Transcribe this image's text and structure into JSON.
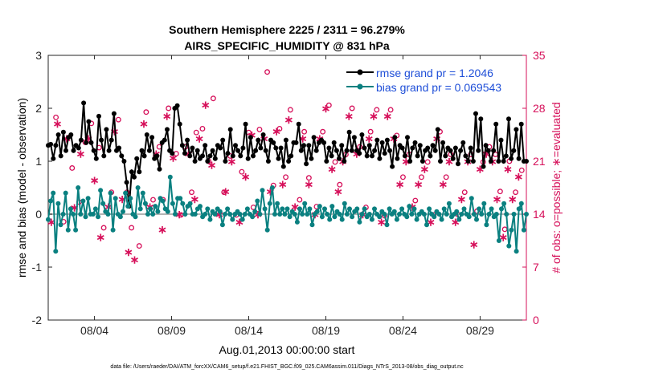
{
  "chart_data": {
    "type": "line",
    "title": "Southern Hemisphere 2225 / 2311 = 96.279%",
    "subtitle": "AIRS_SPECIFIC_HUMIDITY @ 831 hPa",
    "xlabel": "Aug.01,2013 00:00:00 start",
    "ylabel": "rmse and bias (model - observation)",
    "ylabel_right": "# of obs: o=possible; ∗=evaluated",
    "footnote": "data file: /Users/raeder/DAI/ATM_forcXX/CAM6_setup/f.e21.FHIST_BGC.f09_025.CAM6assim.011/Diags_NTrS_2013-08/obs_diag_output.nc",
    "xlim": [
      1,
      32
    ],
    "ylim": [
      -2,
      3
    ],
    "ylim_right": [
      0,
      35
    ],
    "x_ticks": [
      4,
      9,
      14,
      19,
      24,
      29
    ],
    "x_tick_labels": [
      "08/04",
      "08/09",
      "08/14",
      "08/19",
      "08/24",
      "08/29"
    ],
    "y_ticks": [
      -2,
      -1,
      0,
      1,
      2,
      3
    ],
    "y_tick_labels": [
      "-2",
      "-1",
      "0",
      "1",
      "2",
      "3"
    ],
    "y_ticks_right": [
      0,
      7,
      14,
      21,
      28,
      35
    ],
    "y_tick_labels_right": [
      "0",
      "7",
      "14",
      "21",
      "28",
      "35"
    ],
    "legend_position": "top-right",
    "colors": {
      "rmse": "#000000",
      "bias": "#0a8080",
      "obs": "#d6105a",
      "zero_line": "#b4b4b4",
      "legend_text": "#1f4fd8"
    },
    "series": [
      {
        "name": "rmse grand pr = 1.2046",
        "key": "rmse",
        "values": [
          1.3,
          1.32,
          1.05,
          1.3,
          1.5,
          1.1,
          1.55,
          1.2,
          1.45,
          1.5,
          1.2,
          1.3,
          1.25,
          1.4,
          2.1,
          1.35,
          1.75,
          1.35,
          1.2,
          1.05,
          1.85,
          1.4,
          1.1,
          1.6,
          1.2,
          1.4,
          1.9,
          1.2,
          1.25,
          1.1,
          1.0,
          0.6,
          0.15,
          0.8,
          0.7,
          1.05,
          0.8,
          1.2,
          1.1,
          1.5,
          1.2,
          1.45,
          1.05,
          1.1,
          0.85,
          1.35,
          1.4,
          1.6,
          1.2,
          1.15,
          2.0,
          2.05,
          1.7,
          1.3,
          1.15,
          1.4,
          1.1,
          1.25,
          1.0,
          1.2,
          1.05,
          1.1,
          1.3,
          1.0,
          1.1,
          1.2,
          1.05,
          1.3,
          1.25,
          1.4,
          1.0,
          1.15,
          1.6,
          1.1,
          1.3,
          1.2,
          1.1,
          1.25,
          1.7,
          1.05,
          1.45,
          1.1,
          1.2,
          1.4,
          1.25,
          1.5,
          1.2,
          1.0,
          1.4,
          1.35,
          1.25,
          1.05,
          1.25,
          0.9,
          1.4,
          1.0,
          1.1,
          1.35,
          1.35,
          1.7,
          1.2,
          1.3,
          0.95,
          1.3,
          1.05,
          1.45,
          1.2,
          1.35,
          1.4,
          1.35,
          1.0,
          1.25,
          1.1,
          1.35,
          1.2,
          1.05,
          1.3,
          1.0,
          1.2,
          1.55,
          1.2,
          1.45,
          1.2,
          1.15,
          1.5,
          1.25,
          1.1,
          1.3,
          1.1,
          1.2,
          1.4,
          1.05,
          1.35,
          1.15,
          1.4,
          1.2,
          0.9,
          1.45,
          1.05,
          1.3,
          1.25,
          1.1,
          1.45,
          1.0,
          1.25,
          1.35,
          1.1,
          1.3,
          1.0,
          1.2,
          1.25,
          1.1,
          1.3,
          1.2,
          1.6,
          1.0,
          1.35,
          1.1,
          1.25,
          1.2,
          1.05,
          1.25,
          0.95,
          1.2,
          1.35,
          1.1,
          1.0,
          1.25,
          1.0,
          1.9,
          1.2,
          1.8,
          0.9,
          1.3,
          1.2,
          1.0,
          1.2,
          1.7,
          1.0,
          1.4,
          1.0,
          1.1,
          1.8,
          1.05,
          1.2,
          1.6,
          1.05,
          1.7,
          1.0,
          1.0
        ]
      },
      {
        "name": "bias grand pr = 0.069543",
        "key": "bias",
        "values": [
          -0.1,
          0.25,
          0.4,
          -0.7,
          0.2,
          -0.2,
          0.0,
          0.4,
          -0.3,
          0.1,
          0.0,
          -0.3,
          0.5,
          0.0,
          0.25,
          -0.05,
          0.3,
          0.0,
          0.0,
          0.1,
          -0.05,
          0.45,
          0.2,
          0.05,
          0.0,
          0.4,
          -0.3,
          0.3,
          0.0,
          -0.05,
          0.05,
          0.4,
          0.15,
          0.3,
          0.0,
          -0.05,
          0.5,
          0.1,
          0.4,
          0.2,
          0.0,
          0.1,
          0.0,
          0.15,
          0.05,
          0.3,
          0.25,
          0.1,
          0.05,
          0.7,
          0.2,
          0.0,
          0.3,
          0.3,
          0.2,
          0.0,
          0.15,
          0.2,
          0.0,
          0.0,
          0.1,
          0.15,
          -0.05,
          0.0,
          0.1,
          -0.1,
          0.05,
          0.0,
          0.1,
          0.05,
          -0.2,
          0.0,
          0.1,
          0.0,
          -0.1,
          0.0,
          0.05,
          0.0,
          -0.1,
          0.0,
          0.1,
          0.0,
          -0.05,
          0.05,
          0.25,
          0.0,
          0.45,
          0.1,
          -0.3,
          0.2,
          0.5,
          0.0,
          0.2,
          0.0,
          0.1,
          0.0,
          0.1,
          -0.05,
          0.05,
          0.0,
          -0.15,
          0.1,
          0.0,
          0.2,
          0.0,
          0.1,
          -0.2,
          0.0,
          0.05,
          0.15,
          -0.05,
          0.1,
          0.0,
          -0.1,
          0.15,
          -0.05,
          0.05,
          0.0,
          -0.1,
          0.2,
          0.0,
          0.1,
          -0.05,
          0.05,
          0.1,
          -0.15,
          0.0,
          0.1,
          -0.05,
          0.0,
          -0.1,
          0.1,
          0.0,
          -0.05,
          0.05,
          0.0,
          -0.2,
          0.1,
          0.0,
          0.05,
          -0.1,
          0.0,
          0.1,
          0.0,
          -0.05,
          0.15,
          0.0,
          0.1,
          -0.1,
          0.0,
          0.05,
          0.0,
          -0.2,
          0.1,
          0.0,
          -0.05,
          0.05,
          0.0,
          -0.1,
          0.1,
          0.0,
          0.2,
          -0.05,
          0.0,
          0.05,
          -0.1,
          0.0,
          0.1,
          0.0,
          -0.05,
          0.3,
          0.0,
          -0.1,
          0.1,
          0.0,
          0.2,
          -0.2,
          0.0,
          0.1,
          -0.05,
          0.0,
          -0.5,
          0.1,
          0.2,
          0.0,
          -0.6,
          -0.3,
          0.0,
          -0.7,
          0.1,
          0.2,
          -0.3,
          0.0
        ]
      }
    ],
    "obs_possible": [
      {
        "x": 1.5,
        "y": 26.8
      },
      {
        "x": 2.0,
        "y": 13.0
      },
      {
        "x": 2.55,
        "y": 20.1
      },
      {
        "x": 3.0,
        "y": 15.6
      },
      {
        "x": 3.4,
        "y": 23.5
      },
      {
        "x": 3.8,
        "y": 26.0
      },
      {
        "x": 4.3,
        "y": 22.8
      },
      {
        "x": 4.6,
        "y": 12.2
      },
      {
        "x": 5.1,
        "y": 16.9
      },
      {
        "x": 5.55,
        "y": 26.5
      },
      {
        "x": 6.1,
        "y": 16.9
      },
      {
        "x": 6.4,
        "y": 12.2
      },
      {
        "x": 6.9,
        "y": 9.8
      },
      {
        "x": 7.35,
        "y": 27.5
      },
      {
        "x": 7.8,
        "y": 15.9
      },
      {
        "x": 8.2,
        "y": 22.9
      },
      {
        "x": 8.45,
        "y": 15.9
      },
      {
        "x": 8.8,
        "y": 28.0
      },
      {
        "x": 9.3,
        "y": 22.0
      },
      {
        "x": 9.6,
        "y": 13.9
      },
      {
        "x": 9.9,
        "y": 22.9
      },
      {
        "x": 10.3,
        "y": 16.9
      },
      {
        "x": 10.6,
        "y": 24.8
      },
      {
        "x": 11.0,
        "y": 25.3
      },
      {
        "x": 11.4,
        "y": 21.0
      },
      {
        "x": 11.7,
        "y": 29.3
      },
      {
        "x": 12.0,
        "y": 14.2
      },
      {
        "x": 12.4,
        "y": 16.9
      },
      {
        "x": 12.8,
        "y": 21.7
      },
      {
        "x": 13.2,
        "y": 13.9
      },
      {
        "x": 13.55,
        "y": 19.6
      },
      {
        "x": 14.0,
        "y": 24.8
      },
      {
        "x": 14.3,
        "y": 14.9
      },
      {
        "x": 14.7,
        "y": 25.2
      },
      {
        "x": 15.2,
        "y": 32.8
      },
      {
        "x": 15.6,
        "y": 17.8
      },
      {
        "x": 16.0,
        "y": 25.3
      },
      {
        "x": 16.4,
        "y": 18.9
      },
      {
        "x": 16.7,
        "y": 27.8
      },
      {
        "x": 17.3,
        "y": 15.9
      },
      {
        "x": 17.6,
        "y": 24.9
      },
      {
        "x": 17.9,
        "y": 18.8
      },
      {
        "x": 18.4,
        "y": 15.0
      },
      {
        "x": 18.8,
        "y": 24.9
      },
      {
        "x": 19.2,
        "y": 28.4
      },
      {
        "x": 19.6,
        "y": 20.9
      },
      {
        "x": 19.9,
        "y": 17.9
      },
      {
        "x": 20.3,
        "y": 21.9
      },
      {
        "x": 20.7,
        "y": 28.0
      },
      {
        "x": 21.2,
        "y": 22.9
      },
      {
        "x": 21.6,
        "y": 14.9
      },
      {
        "x": 21.9,
        "y": 24.9
      },
      {
        "x": 22.3,
        "y": 27.8
      },
      {
        "x": 22.8,
        "y": 13.8
      },
      {
        "x": 23.2,
        "y": 27.8
      },
      {
        "x": 23.6,
        "y": 24.4
      },
      {
        "x": 24.0,
        "y": 18.9
      },
      {
        "x": 24.4,
        "y": 21.9
      },
      {
        "x": 24.8,
        "y": 15.8
      },
      {
        "x": 25.2,
        "y": 18.9
      },
      {
        "x": 25.6,
        "y": 20.9
      },
      {
        "x": 26.0,
        "y": 13.9
      },
      {
        "x": 26.4,
        "y": 24.9
      },
      {
        "x": 26.8,
        "y": 18.9
      },
      {
        "x": 27.1,
        "y": 21.9
      },
      {
        "x": 27.6,
        "y": 13.9
      },
      {
        "x": 28.0,
        "y": 16.9
      },
      {
        "x": 28.4,
        "y": 21.9
      },
      {
        "x": 28.8,
        "y": 14.4
      },
      {
        "x": 29.2,
        "y": 20.9
      },
      {
        "x": 29.6,
        "y": 22.9
      },
      {
        "x": 30.0,
        "y": 21.9
      },
      {
        "x": 30.3,
        "y": 17.0
      },
      {
        "x": 30.6,
        "y": 12.0
      },
      {
        "x": 30.9,
        "y": 21.0
      },
      {
        "x": 31.3,
        "y": 16.9
      },
      {
        "x": 31.7,
        "y": 19.8
      }
    ],
    "obs_evaluated": [
      {
        "x": 1.2,
        "y": 13.0
      },
      {
        "x": 1.6,
        "y": 26.0
      },
      {
        "x": 2.2,
        "y": 24.0
      },
      {
        "x": 2.7,
        "y": 14.9
      },
      {
        "x": 3.1,
        "y": 22.0
      },
      {
        "x": 3.6,
        "y": 24.0
      },
      {
        "x": 4.0,
        "y": 18.5
      },
      {
        "x": 4.4,
        "y": 11.0
      },
      {
        "x": 4.9,
        "y": 15.0
      },
      {
        "x": 5.3,
        "y": 25.0
      },
      {
        "x": 5.8,
        "y": 16.0
      },
      {
        "x": 6.2,
        "y": 9.0
      },
      {
        "x": 6.6,
        "y": 8.0
      },
      {
        "x": 7.2,
        "y": 26.0
      },
      {
        "x": 7.6,
        "y": 15.0
      },
      {
        "x": 8.0,
        "y": 22.0
      },
      {
        "x": 8.4,
        "y": 12.0
      },
      {
        "x": 8.7,
        "y": 27.0
      },
      {
        "x": 9.1,
        "y": 21.5
      },
      {
        "x": 9.5,
        "y": 14.0
      },
      {
        "x": 10.1,
        "y": 22.0
      },
      {
        "x": 10.5,
        "y": 16.0
      },
      {
        "x": 10.8,
        "y": 24.0
      },
      {
        "x": 11.2,
        "y": 28.5
      },
      {
        "x": 11.6,
        "y": 20.5
      },
      {
        "x": 12.1,
        "y": 14.0
      },
      {
        "x": 12.5,
        "y": 17.0
      },
      {
        "x": 12.9,
        "y": 21.0
      },
      {
        "x": 13.4,
        "y": 13.0
      },
      {
        "x": 13.8,
        "y": 19.0
      },
      {
        "x": 14.2,
        "y": 24.5
      },
      {
        "x": 14.6,
        "y": 14.0
      },
      {
        "x": 15.0,
        "y": 24.0
      },
      {
        "x": 15.4,
        "y": 17.0
      },
      {
        "x": 15.8,
        "y": 25.0
      },
      {
        "x": 16.2,
        "y": 18.0
      },
      {
        "x": 16.6,
        "y": 26.5
      },
      {
        "x": 17.0,
        "y": 15.0
      },
      {
        "x": 17.5,
        "y": 24.0
      },
      {
        "x": 17.9,
        "y": 18.0
      },
      {
        "x": 18.3,
        "y": 14.0
      },
      {
        "x": 18.6,
        "y": 24.0
      },
      {
        "x": 19.0,
        "y": 28.0
      },
      {
        "x": 19.4,
        "y": 20.0
      },
      {
        "x": 19.8,
        "y": 17.0
      },
      {
        "x": 20.1,
        "y": 21.0
      },
      {
        "x": 20.5,
        "y": 27.0
      },
      {
        "x": 21.0,
        "y": 22.0
      },
      {
        "x": 21.4,
        "y": 14.0
      },
      {
        "x": 21.8,
        "y": 24.0
      },
      {
        "x": 22.1,
        "y": 27.0
      },
      {
        "x": 22.6,
        "y": 13.0
      },
      {
        "x": 23.0,
        "y": 27.0
      },
      {
        "x": 23.4,
        "y": 24.0
      },
      {
        "x": 23.8,
        "y": 18.0
      },
      {
        "x": 24.2,
        "y": 21.0
      },
      {
        "x": 24.6,
        "y": 15.0
      },
      {
        "x": 25.0,
        "y": 18.0
      },
      {
        "x": 25.4,
        "y": 20.0
      },
      {
        "x": 25.8,
        "y": 13.0
      },
      {
        "x": 26.2,
        "y": 24.0
      },
      {
        "x": 26.6,
        "y": 18.0
      },
      {
        "x": 27.0,
        "y": 21.0
      },
      {
        "x": 27.4,
        "y": 13.0
      },
      {
        "x": 27.8,
        "y": 16.0
      },
      {
        "x": 28.2,
        "y": 21.0
      },
      {
        "x": 28.6,
        "y": 10.0
      },
      {
        "x": 29.0,
        "y": 20.0
      },
      {
        "x": 29.4,
        "y": 22.0
      },
      {
        "x": 29.8,
        "y": 21.0
      },
      {
        "x": 30.1,
        "y": 16.0
      },
      {
        "x": 30.5,
        "y": 11.0
      },
      {
        "x": 30.8,
        "y": 20.0
      },
      {
        "x": 31.1,
        "y": 16.0
      },
      {
        "x": 31.5,
        "y": 19.0
      }
    ]
  }
}
